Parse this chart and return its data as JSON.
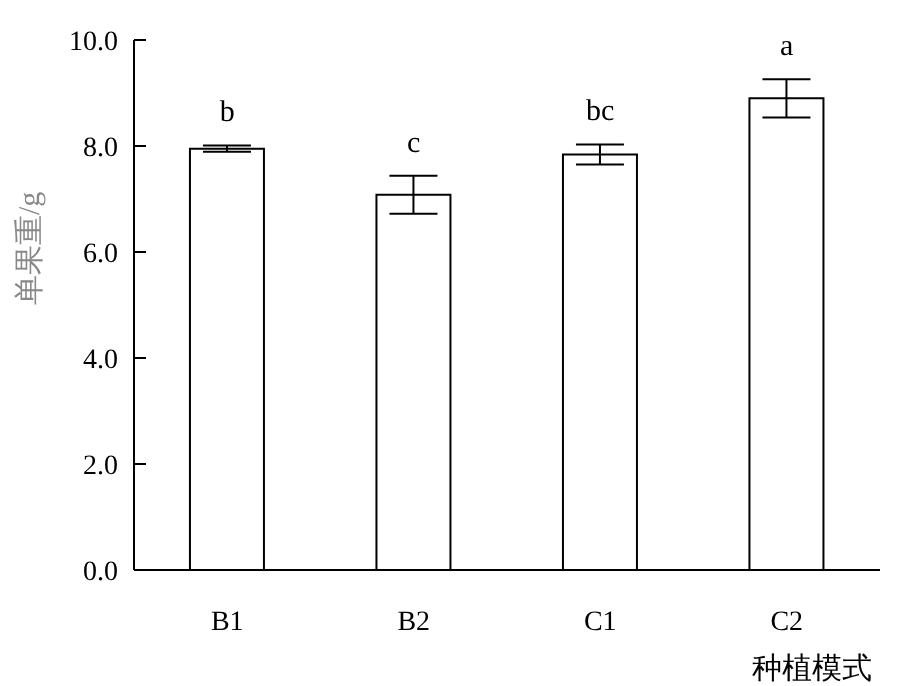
{
  "chart_data": {
    "type": "bar",
    "ylabel": "单果重/g",
    "xlabel": "种植模式",
    "categories": [
      "B1",
      "B2",
      "C1",
      "C2"
    ],
    "values": [
      7.95,
      7.08,
      7.84,
      8.9
    ],
    "errors": [
      0.06,
      0.36,
      0.19,
      0.36
    ],
    "color": "#ffffff",
    "ylim": [
      0,
      10
    ],
    "yticks": [
      {
        "value": 0,
        "label": "0.0"
      },
      {
        "value": 2,
        "label": "2.0"
      },
      {
        "value": 4,
        "label": "4.0"
      },
      {
        "value": 6,
        "label": "6.0"
      },
      {
        "value": 8,
        "label": "8.0"
      },
      {
        "value": 10,
        "label": "10.0"
      }
    ],
    "grid": false,
    "legend": false,
    "annotations": [
      "b",
      "c",
      "bc",
      "a"
    ]
  }
}
